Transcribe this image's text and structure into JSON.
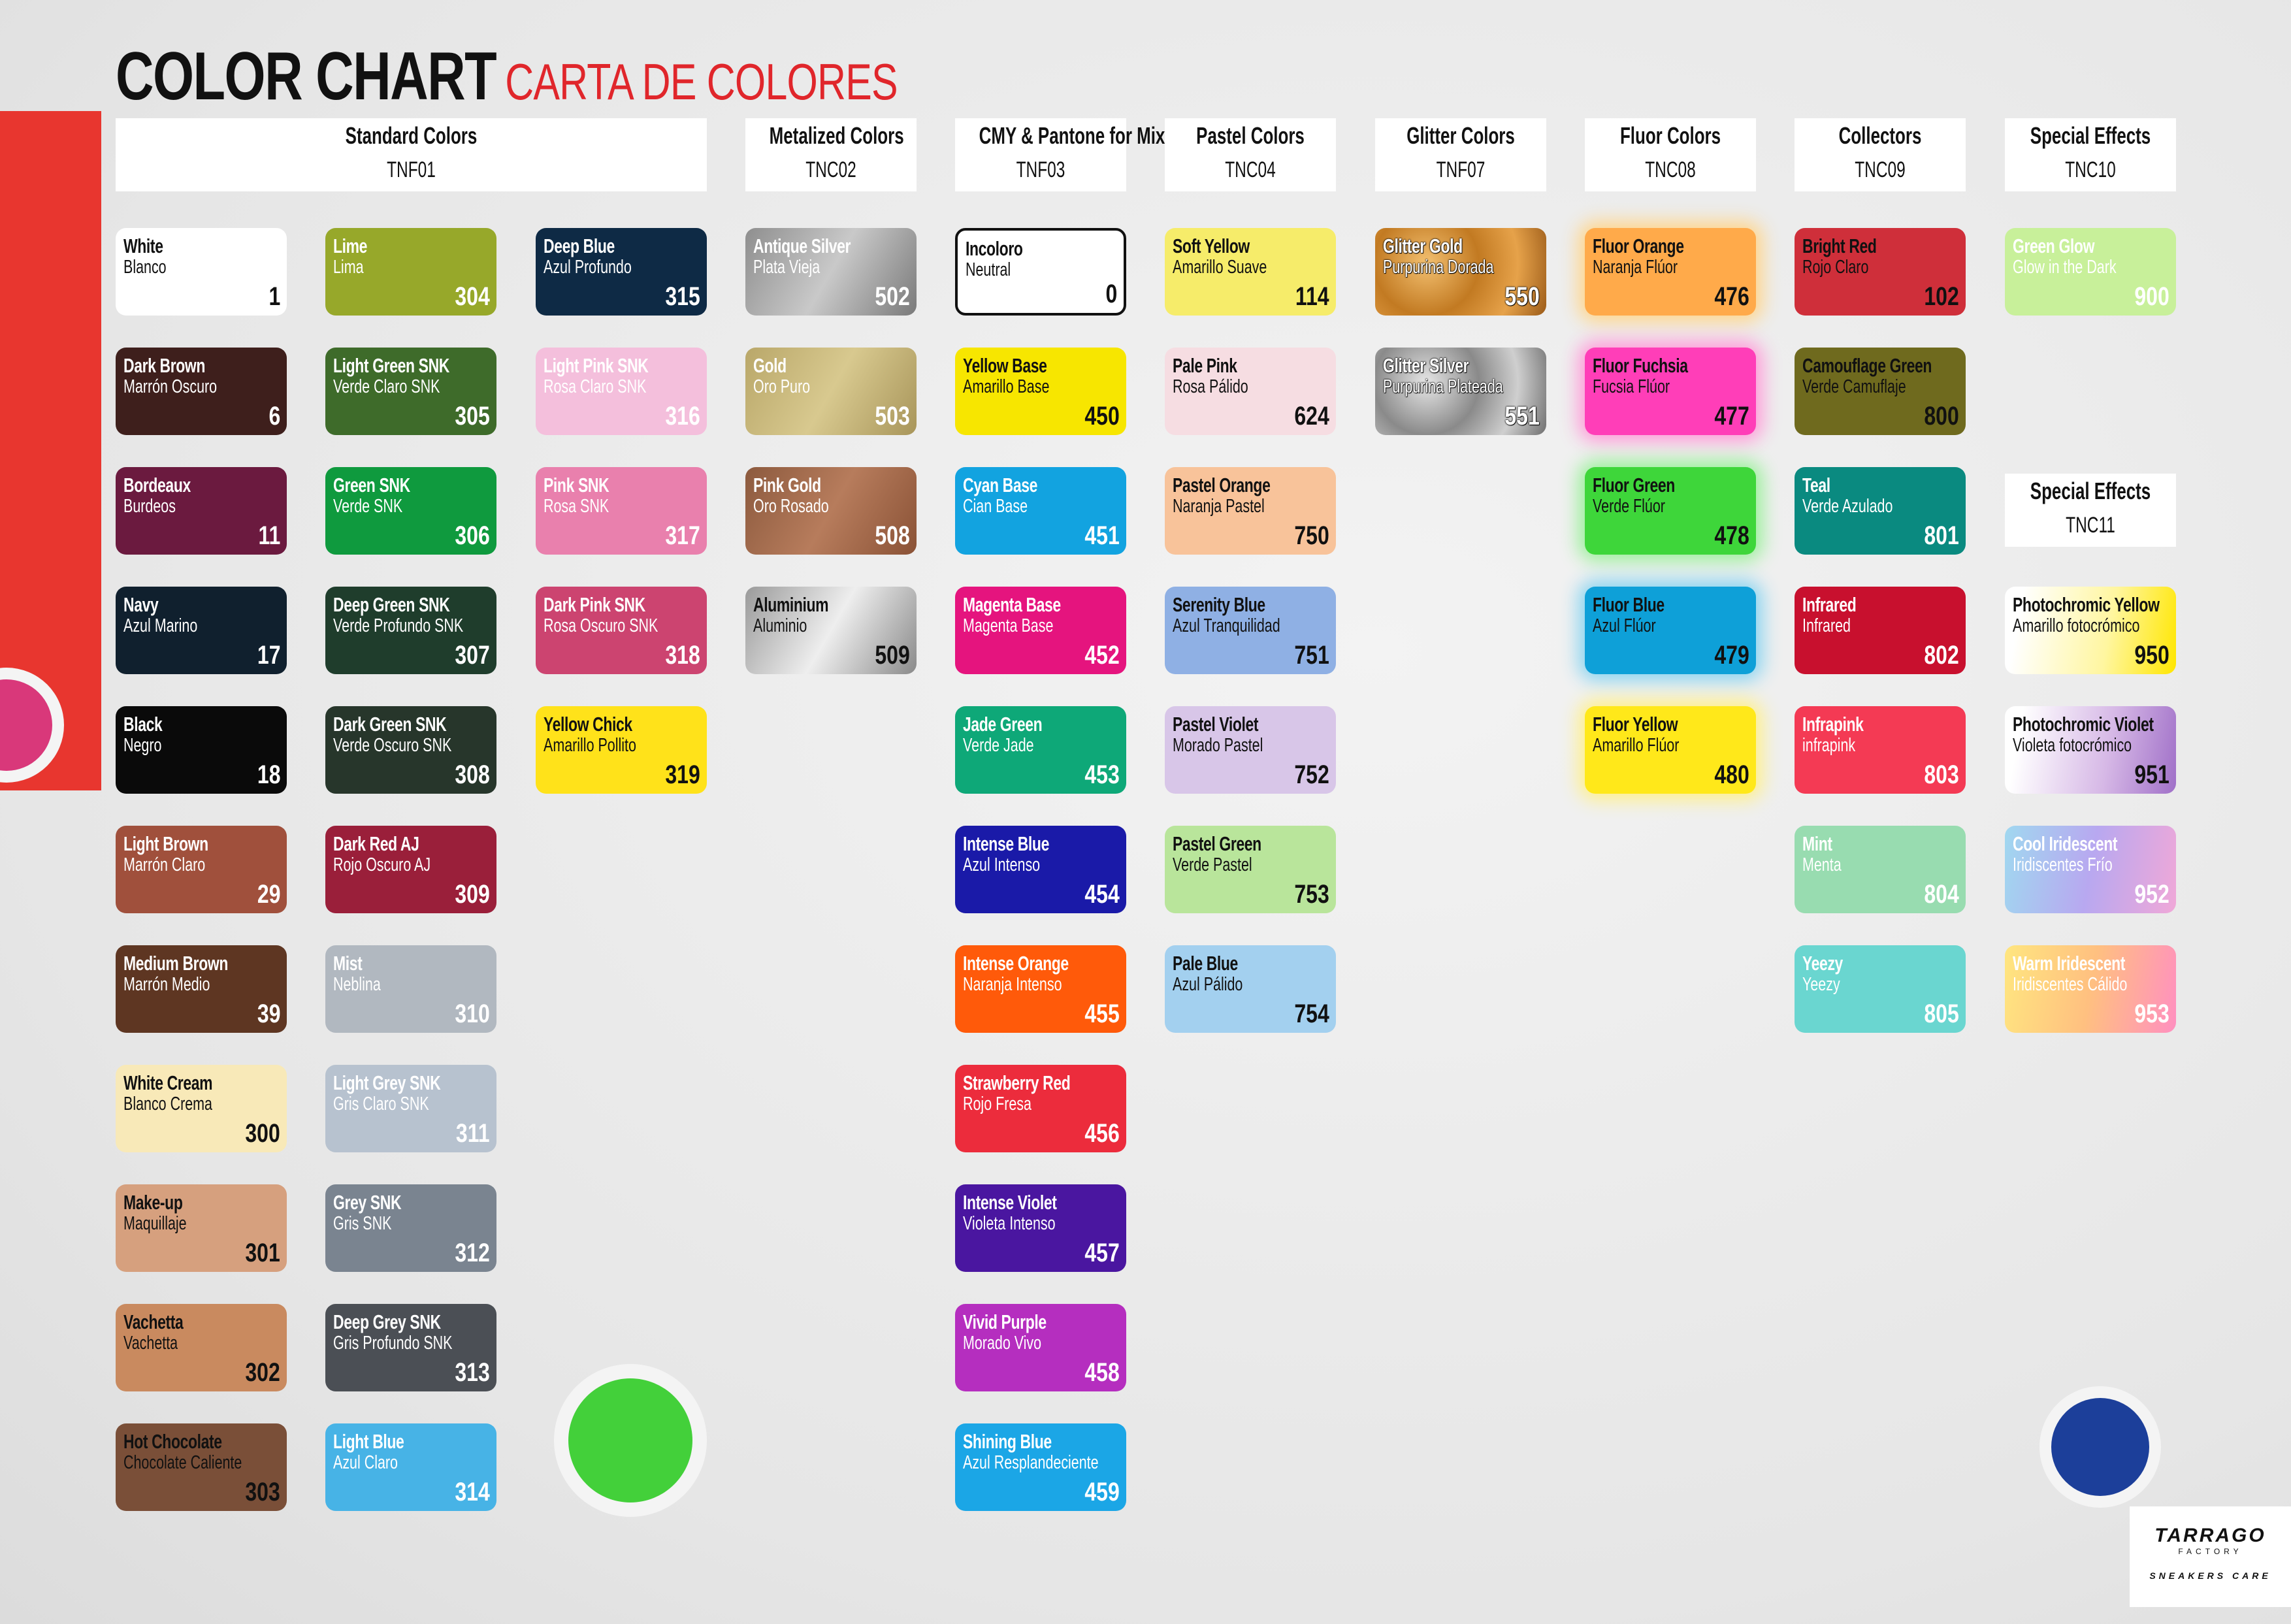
{
  "title": {
    "en": "COLOR CHART",
    "es": "CARTA DE COLORES"
  },
  "logo": {
    "brand": "TARRAGO",
    "sub": "FACTORY",
    "tagline": "SNEAKERS CARE"
  },
  "accent_color": "#e0262b",
  "groups": [
    {
      "title": "Standard Colors",
      "code": "TNF01",
      "columns": [
        [
          {
            "name": "White",
            "name_es": "Blanco",
            "number": "1",
            "color": "#ffffff",
            "text": "dark"
          },
          {
            "name": "Dark Brown",
            "name_es": "Marrón Oscuro",
            "number": "6",
            "color": "#3e1f1c",
            "text": "light"
          },
          {
            "name": "Bordeaux",
            "name_es": "Burdeos",
            "number": "11",
            "color": "#6b1a3f",
            "text": "light"
          },
          {
            "name": "Navy",
            "name_es": "Azul Marino",
            "number": "17",
            "color": "#10202e",
            "text": "light"
          },
          {
            "name": "Black",
            "name_es": "Negro",
            "number": "18",
            "color": "#0a0a0a",
            "text": "light"
          },
          {
            "name": "Light Brown",
            "name_es": "Marrón Claro",
            "number": "29",
            "color": "#a0503c",
            "text": "light"
          },
          {
            "name": "Medium Brown",
            "name_es": "Marrón Medio",
            "number": "39",
            "color": "#5e3622",
            "text": "light"
          },
          {
            "name": "White Cream",
            "name_es": "Blanco Crema",
            "number": "300",
            "color": "#f8e9b8",
            "text": "dark"
          },
          {
            "name": "Make-up",
            "name_es": "Maquillaje",
            "number": "301",
            "color": "#d6a07e",
            "text": "dark"
          },
          {
            "name": "Vachetta",
            "name_es": "Vachetta",
            "number": "302",
            "color": "#c98a5f",
            "text": "dark"
          },
          {
            "name": "Hot Chocolate",
            "name_es": "Chocolate Caliente",
            "number": "303",
            "color": "#7a4f38",
            "text": "dark"
          }
        ],
        [
          {
            "name": "Lime",
            "name_es": "Lima",
            "number": "304",
            "color": "#97a82a",
            "text": "light"
          },
          {
            "name": "Light Green SNK",
            "name_es": "Verde Claro SNK",
            "number": "305",
            "color": "#3e6b2a",
            "text": "light"
          },
          {
            "name": "Green SNK",
            "name_es": "Verde SNK",
            "number": "306",
            "color": "#0f9a3e",
            "text": "light"
          },
          {
            "name": "Deep Green SNK",
            "name_es": "Verde Profundo SNK",
            "number": "307",
            "color": "#1f3d2c",
            "text": "light"
          },
          {
            "name": "Dark Green SNK",
            "name_es": "Verde Oscuro SNK",
            "number": "308",
            "color": "#27362b",
            "text": "light"
          },
          {
            "name": "Dark Red AJ",
            "name_es": "Rojo Oscuro AJ",
            "number": "309",
            "color": "#9a1f3a",
            "text": "light"
          },
          {
            "name": "Mist",
            "name_es": "Neblina",
            "number": "310",
            "color": "#b1b8c0",
            "text": "light"
          },
          {
            "name": "Light Grey SNK",
            "name_es": "Gris Claro SNK",
            "number": "311",
            "color": "#b7c2cf",
            "text": "light"
          },
          {
            "name": "Grey SNK",
            "name_es": "Gris SNK",
            "number": "312",
            "color": "#7a8490",
            "text": "light"
          },
          {
            "name": "Deep Grey SNK",
            "name_es": "Gris Profundo SNK",
            "number": "313",
            "color": "#4b4f55",
            "text": "light"
          },
          {
            "name": "Light Blue",
            "name_es": "Azul Claro",
            "number": "314",
            "color": "#47b3e6",
            "text": "light"
          }
        ],
        [
          {
            "name": "Deep Blue",
            "name_es": "Azul Profundo",
            "number": "315",
            "color": "#0e2a45",
            "text": "light"
          },
          {
            "name": "Light Pink SNK",
            "name_es": "Rosa Claro SNK",
            "number": "316",
            "color": "#f4bfdc",
            "text": "light"
          },
          {
            "name": "Pink SNK",
            "name_es": "Rosa SNK",
            "number": "317",
            "color": "#e980ad",
            "text": "light"
          },
          {
            "name": "Dark Pink SNK",
            "name_es": "Rosa Oscuro SNK",
            "number": "318",
            "color": "#cc4470",
            "text": "light"
          },
          {
            "name": "Yellow Chick",
            "name_es": "Amarillo Pollito",
            "number": "319",
            "color": "#ffe21a",
            "text": "dark"
          }
        ]
      ]
    },
    {
      "title": "Metalized Colors",
      "code": "TNC02",
      "columns": [
        [
          {
            "name": "Antique Silver",
            "name_es": "Plata Vieja",
            "number": "502",
            "color": "linear-gradient(120deg,#8e8e8e,#c9c9c9 50%,#7a7a7a)",
            "text": "light"
          },
          {
            "name": "Gold",
            "name_es": "Oro Puro",
            "number": "503",
            "color": "linear-gradient(120deg,#b9a769,#d8c98f 50%,#a8955a)",
            "text": "light"
          },
          {
            "name": "Pink Gold",
            "name_es": "Oro Rosado",
            "number": "508",
            "color": "linear-gradient(120deg,#8c5a3e,#b77c5c 50%,#8a5236)",
            "text": "light"
          },
          {
            "name": "Aluminium",
            "name_es": "Aluminio",
            "number": "509",
            "color": "linear-gradient(120deg,#9a9a9a,#eeeeee 50%,#8a8a8a)",
            "text": "dark"
          }
        ]
      ]
    },
    {
      "title": "CMY & Pantone for Mixtures",
      "code": "TNF03",
      "columns": [
        [
          {
            "name": "Incoloro",
            "name_es": "Neutral",
            "number": "0",
            "color": "#ffffff",
            "text": "dark",
            "outlined": true
          },
          {
            "name": "Yellow Base",
            "name_es": "Amarillo Base",
            "number": "450",
            "color": "#f7e600",
            "text": "dark"
          },
          {
            "name": "Cyan Base",
            "name_es": "Cian Base",
            "number": "451",
            "color": "#12a3e0",
            "text": "light"
          },
          {
            "name": "Magenta Base",
            "name_es": "Magenta Base",
            "number": "452",
            "color": "#e5147e",
            "text": "light"
          },
          {
            "name": "Jade Green",
            "name_es": "Verde Jade",
            "number": "453",
            "color": "#0ea878",
            "text": "light"
          },
          {
            "name": "Intense Blue",
            "name_es": "Azul Intenso",
            "number": "454",
            "color": "#1a1aa8",
            "text": "light"
          },
          {
            "name": "Intense Orange",
            "name_es": "Naranja Intenso",
            "number": "455",
            "color": "#ff5a0a",
            "text": "light"
          },
          {
            "name": "Strawberry Red",
            "name_es": "Rojo Fresa",
            "number": "456",
            "color": "#ec2c3c",
            "text": "light"
          },
          {
            "name": "Intense Violet",
            "name_es": "Violeta Intenso",
            "number": "457",
            "color": "#4a16a0",
            "text": "light"
          },
          {
            "name": "Vivid Purple",
            "name_es": "Morado Vivo",
            "number": "458",
            "color": "#b52ebf",
            "text": "light"
          },
          {
            "name": "Shining Blue",
            "name_es": "Azul Resplandeciente",
            "number": "459",
            "color": "#1ba6e6",
            "text": "light"
          }
        ]
      ]
    },
    {
      "title": "Pastel Colors",
      "code": "TNC04",
      "columns": [
        [
          {
            "name": "Soft Yellow",
            "name_es": "Amarillo Suave",
            "number": "114",
            "color": "#f6ec6a",
            "text": "dark"
          },
          {
            "name": "Pale Pink",
            "name_es": "Rosa Pálido",
            "number": "624",
            "color": "#f6dde2",
            "text": "dark"
          },
          {
            "name": "Pastel Orange",
            "name_es": "Naranja Pastel",
            "number": "750",
            "color": "#f8c39a",
            "text": "dark"
          },
          {
            "name": "Serenity Blue",
            "name_es": "Azul Tranquilidad",
            "number": "751",
            "color": "#8fb0e4",
            "text": "dark"
          },
          {
            "name": "Pastel Violet",
            "name_es": "Morado Pastel",
            "number": "752",
            "color": "#d8c6e8",
            "text": "dark"
          },
          {
            "name": "Pastel Green",
            "name_es": "Verde Pastel",
            "number": "753",
            "color": "#b9e59b",
            "text": "dark"
          },
          {
            "name": "Pale Blue",
            "name_es": "Azul Pálido",
            "number": "754",
            "color": "#a3d0ef",
            "text": "dark"
          }
        ]
      ]
    },
    {
      "title": "Glitter Colors",
      "code": "TNF07",
      "columns": [
        [
          {
            "name": "Glitter Gold",
            "name_es": "Purpurina Dorada",
            "number": "550",
            "color": "radial-gradient(circle at 30% 40%,#f3c070 0,#c27a22 40%,#e6a24a 70%,#9a5a18 100%)",
            "text": "glit"
          },
          {
            "name": "Glitter Silver",
            "name_es": "Purpurina Plateada",
            "number": "551",
            "color": "radial-gradient(circle at 30% 40%,#e6e6e6 0,#8a8a8a 40%,#cfcfcf 70%,#6f6f6f 100%)",
            "text": "glit"
          }
        ]
      ]
    },
    {
      "title": "Fluor Colors",
      "code": "TNC08",
      "columns": [
        [
          {
            "name": "Fluor Orange",
            "name_es": "Naranja Flúor",
            "number": "476",
            "color": "#ffaa4a",
            "text": "dark",
            "glow": "#ffd58a"
          },
          {
            "name": "Fluor Fuchsia",
            "name_es": "Fucsia Flúor",
            "number": "477",
            "color": "#ff3eb8",
            "text": "dark",
            "glow": "#ff9ad8"
          },
          {
            "name": "Fluor Green",
            "name_es": "Verde Flúor",
            "number": "478",
            "color": "#3ed63a",
            "text": "dark",
            "glow": "#9af09a"
          },
          {
            "name": "Fluor Blue",
            "name_es": "Azul Flúor",
            "number": "479",
            "color": "#0ea0d8",
            "text": "dark",
            "glow": "#8ad4f0"
          },
          {
            "name": "Fluor Yellow",
            "name_es": "Amarillo Flúor",
            "number": "480",
            "color": "#ffe81a",
            "text": "dark",
            "glow": "#fff08a"
          }
        ]
      ]
    },
    {
      "title": "Collectors",
      "code": "TNC09",
      "columns": [
        [
          {
            "name": "Bright Red",
            "name_es": "Rojo Claro",
            "number": "102",
            "color": "#cf2f3a",
            "text": "dark"
          },
          {
            "name": "Camouflage Green",
            "name_es": "Verde Camuflaje",
            "number": "800",
            "color": "#6f6a1e",
            "text": "dark"
          },
          {
            "name": "Teal",
            "name_es": "Verde Azulado",
            "number": "801",
            "color": "#0a8a80",
            "text": "light"
          },
          {
            "name": "Infrared",
            "name_es": "Infrared",
            "number": "802",
            "color": "#c8102e",
            "text": "light"
          },
          {
            "name": "Infrapink",
            "name_es": "infrapink",
            "number": "803",
            "color": "#f43a54",
            "text": "light"
          },
          {
            "name": "Mint",
            "name_es": "Menta",
            "number": "804",
            "color": "#98dcb0",
            "text": "light"
          },
          {
            "name": "Yeezy",
            "name_es": "Yeezy",
            "number": "805",
            "color": "#6ad6d0",
            "text": "light"
          }
        ]
      ]
    },
    {
      "title": "Special Effects",
      "code": "TNC10",
      "columns": [
        [
          {
            "name": "Green Glow",
            "name_es": "Glow in the Dark",
            "number": "900",
            "color": "#c8f09a",
            "text": "light"
          }
        ]
      ]
    },
    {
      "title": "Special Effects",
      "code": "TNC11",
      "columns": [
        [
          {
            "name": "Photochromic Yellow",
            "name_es": "Amarillo fotocrómico",
            "number": "950",
            "color": "linear-gradient(100deg,#ffffff 10%,#fff6a0 60%,#ffe600)",
            "text": "dark"
          },
          {
            "name": "Photochromic Violet",
            "name_es": "Violeta fotocrómico",
            "number": "951",
            "color": "linear-gradient(100deg,#ffffff 10%,#d6b8e6 60%,#a070c8)",
            "text": "dark"
          },
          {
            "name": "Cool Iridescent",
            "name_es": "Iridiscentes Frío",
            "number": "952",
            "color": "linear-gradient(100deg,#a0d8f0,#b8a8f0 50%,#f0a8d8)",
            "text": "light"
          },
          {
            "name": "Warm Iridescent",
            "name_es": "Iridiscentes Cálido",
            "number": "953",
            "color": "linear-gradient(100deg,#ffe680,#ffc080 50%,#ff90c0)",
            "text": "light"
          }
        ]
      ]
    }
  ]
}
